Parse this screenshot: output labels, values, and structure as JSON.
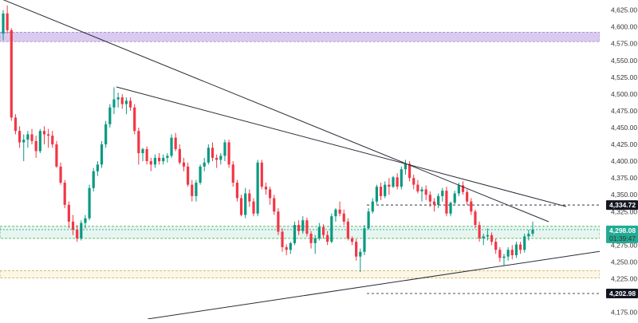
{
  "chart_data": {
    "type": "candlestick",
    "ylim": [
      4165,
      4640
    ],
    "y_ticks": [
      {
        "value": 4625,
        "label": "4,625.00"
      },
      {
        "value": 4600,
        "label": "4,600.00"
      },
      {
        "value": 4575,
        "label": "4,575.00"
      },
      {
        "value": 4550,
        "label": "4,550.00"
      },
      {
        "value": 4525,
        "label": "4,525.00"
      },
      {
        "value": 4500,
        "label": "4,500.00"
      },
      {
        "value": 4475,
        "label": "4,475.00"
      },
      {
        "value": 4450,
        "label": "4,450.00"
      },
      {
        "value": 4425,
        "label": "4,425.00"
      },
      {
        "value": 4400,
        "label": "4,400.00"
      },
      {
        "value": 4375,
        "label": "4,375.00"
      },
      {
        "value": 4350,
        "label": "4,350.00"
      },
      {
        "value": 4325,
        "label": "4,325.00"
      },
      {
        "value": 4275,
        "label": "4,275.00"
      },
      {
        "value": 4250,
        "label": "4,250.00"
      },
      {
        "value": 4225,
        "label": "4,225.00"
      },
      {
        "value": 4175,
        "label": "4,175.00"
      }
    ],
    "price_tags": [
      {
        "value": 4334.72,
        "label": "4,334.72",
        "bg": "#131722",
        "fg": "#ffffff"
      },
      {
        "value": 4202.98,
        "label": "4,202.98",
        "bg": "#131722",
        "fg": "#ffffff"
      }
    ],
    "current_price": {
      "value": 4298.08,
      "label": "4,298.08",
      "countdown": "01:39:47",
      "bg": "#22ab94",
      "fg": "#ffffff"
    },
    "dashed_lines": [
      4334.72,
      4202.98
    ],
    "zones": [
      {
        "from": 4578,
        "to": 4592,
        "fill": "#cdb8ea",
        "stroke": "#a68bd6"
      },
      {
        "from": 4285,
        "to": 4303,
        "fill": "#dff2ec",
        "stroke": "#4caf50"
      },
      {
        "from": 4226,
        "to": 4237,
        "fill": "#fbf3dc",
        "stroke": "#c9a94a"
      }
    ],
    "colors": {
      "up": "#089981",
      "down": "#f23645",
      "trendline": "#2a2e39"
    },
    "candles": [
      [
        4590,
        4625,
        4580,
        4620
      ],
      [
        4620,
        4632,
        4590,
        4595
      ],
      [
        4595,
        4598,
        4460,
        4465
      ],
      [
        4465,
        4470,
        4440,
        4445
      ],
      [
        4445,
        4452,
        4420,
        4428
      ],
      [
        4428,
        4440,
        4400,
        4432
      ],
      [
        4432,
        4445,
        4420,
        4440
      ],
      [
        4440,
        4448,
        4425,
        4430
      ],
      [
        4430,
        4438,
        4405,
        4415
      ],
      [
        4415,
        4448,
        4412,
        4445
      ],
      [
        4445,
        4452,
        4425,
        4440
      ],
      [
        4440,
        4448,
        4420,
        4438
      ],
      [
        4438,
        4445,
        4420,
        4425
      ],
      [
        4425,
        4430,
        4390,
        4392
      ],
      [
        4392,
        4398,
        4365,
        4368
      ],
      [
        4368,
        4372,
        4330,
        4335
      ],
      [
        4335,
        4340,
        4300,
        4310
      ],
      [
        4310,
        4320,
        4290,
        4298
      ],
      [
        4298,
        4305,
        4280,
        4285
      ],
      [
        4285,
        4312,
        4282,
        4308
      ],
      [
        4308,
        4320,
        4300,
        4315
      ],
      [
        4315,
        4365,
        4312,
        4360
      ],
      [
        4360,
        4390,
        4355,
        4385
      ],
      [
        4385,
        4400,
        4378,
        4395
      ],
      [
        4395,
        4430,
        4390,
        4425
      ],
      [
        4425,
        4460,
        4420,
        4455
      ],
      [
        4455,
        4485,
        4450,
        4480
      ],
      [
        4480,
        4510,
        4470,
        4492
      ],
      [
        4492,
        4502,
        4480,
        4495
      ],
      [
        4495,
        4500,
        4478,
        4485
      ],
      [
        4485,
        4495,
        4470,
        4490
      ],
      [
        4490,
        4495,
        4475,
        4480
      ],
      [
        4480,
        4485,
        4440,
        4445
      ],
      [
        4445,
        4450,
        4395,
        4412
      ],
      [
        4412,
        4420,
        4400,
        4418
      ],
      [
        4418,
        4422,
        4395,
        4400
      ],
      [
        4400,
        4405,
        4385,
        4395
      ],
      [
        4395,
        4410,
        4390,
        4405
      ],
      [
        4405,
        4412,
        4395,
        4400
      ],
      [
        4400,
        4410,
        4395,
        4405
      ],
      [
        4405,
        4412,
        4398,
        4408
      ],
      [
        4408,
        4440,
        4405,
        4435
      ],
      [
        4435,
        4442,
        4415,
        4418
      ],
      [
        4418,
        4425,
        4395,
        4398
      ],
      [
        4398,
        4405,
        4385,
        4392
      ],
      [
        4392,
        4398,
        4362,
        4365
      ],
      [
        4365,
        4372,
        4340,
        4348
      ],
      [
        4348,
        4372,
        4340,
        4368
      ],
      [
        4368,
        4395,
        4365,
        4392
      ],
      [
        4392,
        4405,
        4385,
        4398
      ],
      [
        4398,
        4425,
        4395,
        4420
      ],
      [
        4420,
        4428,
        4400,
        4405
      ],
      [
        4405,
        4410,
        4390,
        4402
      ],
      [
        4402,
        4412,
        4395,
        4408
      ],
      [
        4408,
        4432,
        4400,
        4428
      ],
      [
        4428,
        4432,
        4390,
        4395
      ],
      [
        4395,
        4400,
        4362,
        4368
      ],
      [
        4368,
        4372,
        4340,
        4345
      ],
      [
        4345,
        4350,
        4318,
        4320
      ],
      [
        4320,
        4360,
        4315,
        4352
      ],
      [
        4352,
        4358,
        4332,
        4340
      ],
      [
        4340,
        4345,
        4318,
        4322
      ],
      [
        4322,
        4402,
        4318,
        4398
      ],
      [
        4398,
        4402,
        4358,
        4362
      ],
      [
        4362,
        4368,
        4350,
        4358
      ],
      [
        4358,
        4362,
        4335,
        4345
      ],
      [
        4345,
        4350,
        4320,
        4325
      ],
      [
        4325,
        4330,
        4290,
        4295
      ],
      [
        4295,
        4300,
        4265,
        4272
      ],
      [
        4272,
        4276,
        4260,
        4268
      ],
      [
        4268,
        4280,
        4262,
        4278
      ],
      [
        4278,
        4310,
        4275,
        4305
      ],
      [
        4305,
        4312,
        4290,
        4296
      ],
      [
        4296,
        4318,
        4292,
        4312
      ],
      [
        4312,
        4316,
        4288,
        4292
      ],
      [
        4292,
        4296,
        4270,
        4278
      ],
      [
        4278,
        4290,
        4262,
        4285
      ],
      [
        4285,
        4308,
        4282,
        4302
      ],
      [
        4302,
        4306,
        4285,
        4290
      ],
      [
        4290,
        4296,
        4275,
        4280
      ],
      [
        4280,
        4322,
        4278,
        4318
      ],
      [
        4318,
        4330,
        4310,
        4328
      ],
      [
        4328,
        4340,
        4318,
        4322
      ],
      [
        4322,
        4328,
        4305,
        4310
      ],
      [
        4310,
        4315,
        4282,
        4285
      ],
      [
        4285,
        4288,
        4275,
        4280
      ],
      [
        4280,
        4284,
        4252,
        4258
      ],
      [
        4258,
        4270,
        4235,
        4265
      ],
      [
        4265,
        4305,
        4260,
        4300
      ],
      [
        4300,
        4330,
        4298,
        4325
      ],
      [
        4325,
        4345,
        4322,
        4340
      ],
      [
        4340,
        4365,
        4336,
        4362
      ],
      [
        4362,
        4368,
        4342,
        4348
      ],
      [
        4348,
        4370,
        4345,
        4365
      ],
      [
        4365,
        4375,
        4350,
        4362
      ],
      [
        4362,
        4378,
        4360,
        4376
      ],
      [
        4376,
        4382,
        4358,
        4362
      ],
      [
        4362,
        4392,
        4358,
        4388
      ],
      [
        4388,
        4402,
        4380,
        4396
      ],
      [
        4396,
        4400,
        4370,
        4375
      ],
      [
        4375,
        4380,
        4358,
        4365
      ],
      [
        4365,
        4372,
        4352,
        4355
      ],
      [
        4355,
        4362,
        4340,
        4358
      ],
      [
        4358,
        4364,
        4342,
        4350
      ],
      [
        4350,
        4355,
        4332,
        4340
      ],
      [
        4340,
        4345,
        4325,
        4335
      ],
      [
        4335,
        4352,
        4330,
        4348
      ],
      [
        4348,
        4360,
        4340,
        4356
      ],
      [
        4356,
        4362,
        4318,
        4322
      ],
      [
        4322,
        4340,
        4318,
        4338
      ],
      [
        4338,
        4356,
        4336,
        4352
      ],
      [
        4352,
        4368,
        4348,
        4364
      ],
      [
        4364,
        4370,
        4350,
        4354
      ],
      [
        4354,
        4358,
        4335,
        4340
      ],
      [
        4340,
        4345,
        4320,
        4325
      ],
      [
        4325,
        4328,
        4300,
        4305
      ],
      [
        4305,
        4310,
        4280,
        4285
      ],
      [
        4285,
        4292,
        4275,
        4288
      ],
      [
        4288,
        4300,
        4282,
        4290
      ],
      [
        4290,
        4294,
        4275,
        4280
      ],
      [
        4280,
        4285,
        4262,
        4268
      ],
      [
        4268,
        4272,
        4250,
        4256
      ],
      [
        4256,
        4262,
        4245,
        4258
      ],
      [
        4258,
        4272,
        4252,
        4268
      ],
      [
        4268,
        4275,
        4254,
        4260
      ],
      [
        4260,
        4280,
        4256,
        4276
      ],
      [
        4276,
        4280,
        4262,
        4268
      ],
      [
        4268,
        4292,
        4264,
        4288
      ],
      [
        4288,
        4298,
        4282,
        4292
      ],
      [
        4292,
        4310,
        4288,
        4298
      ]
    ]
  }
}
